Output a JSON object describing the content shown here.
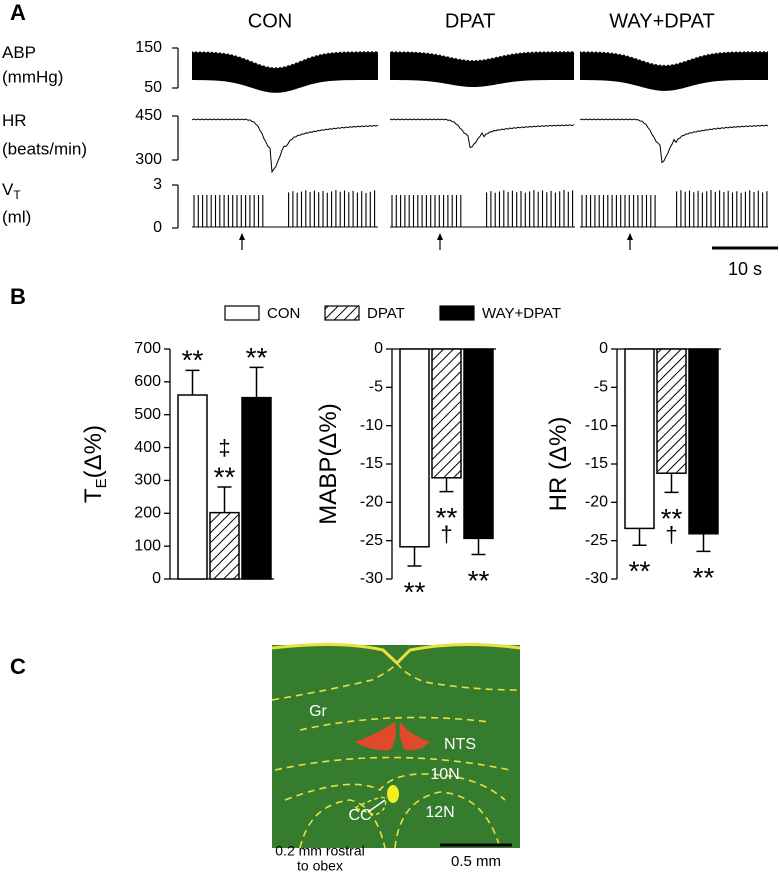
{
  "panel_labels": [
    "A",
    "B",
    "C"
  ],
  "panel_a": {
    "columns": [
      "CON",
      "DPAT",
      "WAY+DPAT"
    ],
    "rows": [
      {
        "label": "ABP",
        "unit": "(mmHg)",
        "ticks": [
          150,
          50
        ]
      },
      {
        "label": "HR",
        "unit": "(beats/min)",
        "ticks": [
          450,
          300
        ]
      },
      {
        "label": "V",
        "label_sub": "T",
        "unit": "(ml)",
        "ticks": [
          3,
          0
        ]
      }
    ],
    "scale_bar": "10 s"
  },
  "chart_data": [
    {
      "type": "bar",
      "ylabel": "T",
      "ylabel_sub": "E",
      "ylabel_unit": "(Δ%)",
      "ylim": [
        0,
        700
      ],
      "yticks": [
        0,
        100,
        200,
        300,
        400,
        500,
        600,
        700
      ],
      "series": [
        {
          "name": "CON",
          "color": "#ffffff",
          "values": [
            560
          ],
          "errors": [
            75
          ],
          "annotations": [
            "**"
          ]
        },
        {
          "name": "DPAT",
          "color": "#ffffff",
          "pattern": "hatch",
          "values": [
            202
          ],
          "errors": [
            78
          ],
          "annotations": [
            "‡",
            "**"
          ]
        },
        {
          "name": "WAY+DPAT",
          "color": "#000000",
          "values": [
            552
          ],
          "errors": [
            92
          ],
          "annotations": [
            "**"
          ]
        }
      ]
    },
    {
      "type": "bar",
      "ylabel": "MABP(Δ%)",
      "ylim": [
        -30,
        0
      ],
      "yticks": [
        0,
        -5,
        -10,
        -15,
        -20,
        -25,
        -30
      ],
      "series": [
        {
          "color": "#ffffff",
          "values": [
            -25.8
          ],
          "errors": [
            2.5
          ],
          "annotations": [
            "**"
          ]
        },
        {
          "color": "#ffffff",
          "pattern": "hatch",
          "values": [
            -16.8
          ],
          "errors": [
            1.8
          ],
          "annotations": [
            "**",
            "†"
          ]
        },
        {
          "color": "#000000",
          "values": [
            -24.7
          ],
          "errors": [
            2.1
          ],
          "annotations": [
            "**"
          ]
        }
      ]
    },
    {
      "type": "bar",
      "ylabel": "HR (Δ%)",
      "ylim": [
        -30,
        0
      ],
      "yticks": [
        0,
        -5,
        -10,
        -15,
        -20,
        -25,
        -30
      ],
      "series": [
        {
          "color": "#ffffff",
          "values": [
            -23.4
          ],
          "errors": [
            2.2
          ],
          "annotations": [
            "**"
          ]
        },
        {
          "color": "#ffffff",
          "pattern": "hatch",
          "values": [
            -16.2
          ],
          "errors": [
            2.5
          ],
          "annotations": [
            "**",
            "†"
          ]
        },
        {
          "color": "#000000",
          "values": [
            -24.1
          ],
          "errors": [
            2.3
          ],
          "annotations": [
            "**"
          ]
        }
      ]
    }
  ],
  "panel_c": {
    "labels": [
      "Gr",
      "NTS",
      "10N",
      "CC",
      "12N"
    ],
    "caption": [
      "0.2 mm rostral",
      "to obex"
    ],
    "scale_bar": "0.5 mm"
  }
}
